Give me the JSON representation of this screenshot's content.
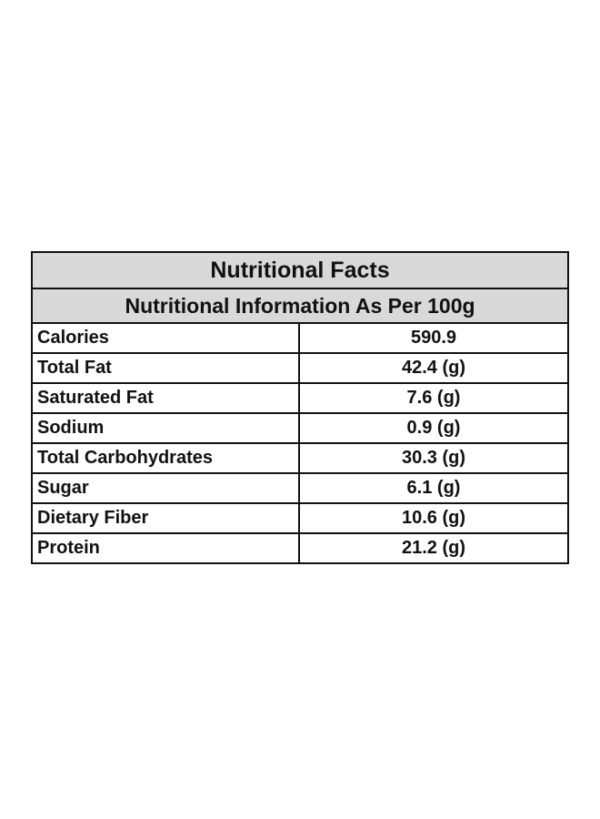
{
  "title": "Nutritional Facts",
  "subtitle": "Nutritional Information As Per 100g",
  "rows": [
    {
      "name": "Calories",
      "value": "590.9"
    },
    {
      "name": "Total Fat",
      "value": "42.4 (g)"
    },
    {
      "name": "Saturated Fat",
      "value": "7.6 (g)"
    },
    {
      "name": "Sodium",
      "value": "0.9 (g)"
    },
    {
      "name": "Total Carbohydrates",
      "value": "30.3 (g)"
    },
    {
      "name": "Sugar",
      "value": "6.1 (g)"
    },
    {
      "name": "Dietary Fiber",
      "value": "10.6 (g)"
    },
    {
      "name": "Protein",
      "value": "21.2 (g)"
    }
  ],
  "colors": {
    "header_background": "#d9d9d9",
    "border": "#111111",
    "text": "#111111"
  }
}
